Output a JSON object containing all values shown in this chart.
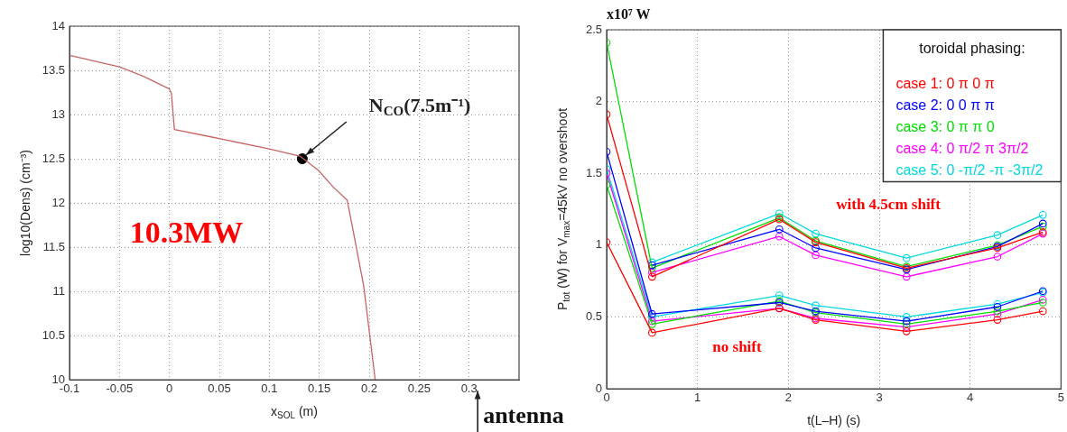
{
  "chart_data": [
    {
      "type": "line",
      "xlabel": "x$_{SOL}$ (m)",
      "ylabel": "log10(Dens) (cm⁻³)",
      "xlim": [
        -0.1,
        0.35
      ],
      "ylim": [
        10,
        14
      ],
      "xticks": [
        -0.1,
        -0.05,
        0,
        0.05,
        0.1,
        0.15,
        0.2,
        0.25,
        0.3
      ],
      "yticks": [
        10,
        10.5,
        11,
        11.5,
        12,
        12.5,
        13,
        13.5,
        14
      ],
      "grid": true,
      "series": [
        {
          "color": "#c86464",
          "x": [
            -0.1,
            -0.05,
            -0.0255,
            0,
            0.002,
            0.005,
            0.0405,
            0.1,
            0.1306,
            0.149,
            0.164,
            0.178,
            0.1835,
            0.1945,
            0.206
          ],
          "values": [
            13.67,
            13.54,
            13.43,
            13.29,
            13.24,
            12.83,
            12.75,
            12.61,
            12.53,
            12.37,
            12.18,
            12.03,
            11.71,
            11.06,
            10
          ]
        },
        {
          "type": "scatter",
          "color": "#000000",
          "x": [
            0.133
          ],
          "values": [
            12.5
          ]
        }
      ],
      "annotations": [
        "10.3MW",
        {
          "text": "N$_{CO}$(7.5m⁻¹)",
          "x": 0.133,
          "y": 12.5
        },
        "antenna"
      ]
    },
    {
      "type": "line",
      "xlabel": "t(L–H) (s)",
      "ylabel": "P$_{tot}$ (W) for V$_{max}$=45kV no overshoot",
      "xlim": [
        0,
        5
      ],
      "ylim": [
        0,
        2.5
      ],
      "xticks": [
        0,
        1,
        2,
        3,
        4,
        5
      ],
      "yticks": [
        0,
        0.5,
        1,
        1.5,
        2,
        2.5
      ],
      "grid": true,
      "marker": "circle",
      "line_style": "solid",
      "legend": "top right",
      "legend_title": "toroidal phasing:",
      "x": [
        0,
        0.5,
        1.9,
        2.3,
        3.3,
        4.3,
        4.8
      ],
      "series": [
        {
          "name": "case 1: 0 π 0 π",
          "color": "#ff0000",
          "values": [
            1.91,
            0.78,
            1.18,
            1.02,
            0.84,
            0.98,
            1.09
          ]
        },
        {
          "name": "case 2: 0 0 π π",
          "color": "#0000ff",
          "values": [
            null,
            0.86,
            1.11,
            0.98,
            0.83,
            0.99,
            1.15
          ]
        },
        {
          "name": "case 3: 0 π π 0",
          "color": "#00dd00",
          "values": [
            2.41,
            0.84,
            1.19,
            1.03,
            0.85,
            1.0,
            1.13
          ]
        },
        {
          "name": "case 4: 0 π/2 π 3π/2",
          "color": "#ff00ff",
          "values": [
            null,
            0.81,
            1.06,
            0.93,
            0.78,
            0.92,
            1.08
          ]
        },
        {
          "name": "case 5: 0 -π/2 -π -3π/2",
          "color": "#00d8e0",
          "values": [
            null,
            0.88,
            1.22,
            1.08,
            0.91,
            1.07,
            1.21
          ]
        },
        {
          "color": "#ff0000",
          "values": [
            1.02,
            0.39,
            0.56,
            0.48,
            0.4,
            0.48,
            0.54
          ]
        },
        {
          "color": "#0000ff",
          "values": [
            1.65,
            0.52,
            0.6,
            0.54,
            0.47,
            0.57,
            0.68
          ]
        },
        {
          "color": "#00dd00",
          "values": [
            1.42,
            0.45,
            0.61,
            0.53,
            0.45,
            0.54,
            0.6
          ]
        },
        {
          "color": "#ff00ff",
          "values": [
            1.5,
            0.47,
            0.56,
            0.49,
            0.43,
            0.52,
            0.62
          ]
        },
        {
          "color": "#00d8e0",
          "values": [
            1.53,
            0.5,
            0.65,
            0.58,
            0.5,
            0.59,
            0.67
          ]
        }
      ],
      "annotations": [
        "x10⁷ W",
        "with 4.5cm shift",
        "no shift"
      ]
    }
  ]
}
